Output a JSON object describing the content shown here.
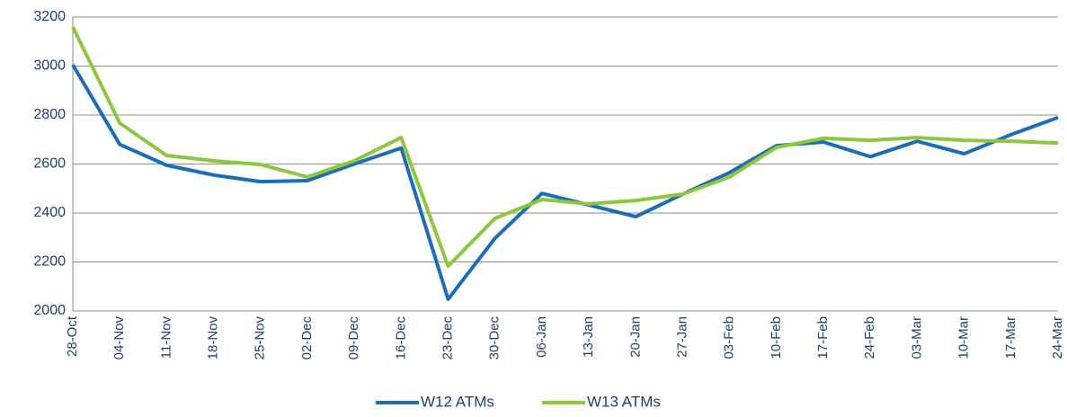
{
  "chart_data": {
    "type": "line",
    "categories": [
      "28-Oct",
      "04-Nov",
      "11-Nov",
      "18-Nov",
      "25-Nov",
      "02-Dec",
      "09-Dec",
      "16-Dec",
      "23-Dec",
      "30-Dec",
      "06-Jan",
      "13-Jan",
      "20-Jan",
      "27-Jan",
      "03-Feb",
      "10-Feb",
      "17-Feb",
      "24-Feb",
      "03-Mar",
      "10-Mar",
      "17-Mar",
      "24-Mar"
    ],
    "series": [
      {
        "name": "W12 ATMs",
        "color": "#1b6db5",
        "values": [
          3005,
          2680,
          2595,
          2555,
          2528,
          2532,
          2600,
          2665,
          2048,
          2297,
          2480,
          2433,
          2385,
          2477,
          2565,
          2675,
          2690,
          2630,
          2693,
          2642,
          2720,
          2790
        ]
      },
      {
        "name": "W13 ATMs",
        "color": "#8dc63f",
        "values": [
          3160,
          2767,
          2635,
          2613,
          2598,
          2547,
          2613,
          2708,
          2183,
          2378,
          2455,
          2437,
          2451,
          2477,
          2547,
          2668,
          2705,
          2697,
          2708,
          2697,
          2693,
          2686
        ]
      }
    ],
    "ylim": [
      2000,
      3200
    ],
    "yticks": [
      2000,
      2200,
      2400,
      2600,
      2800,
      3000,
      3200
    ],
    "grid": true,
    "legend": "bottom"
  }
}
